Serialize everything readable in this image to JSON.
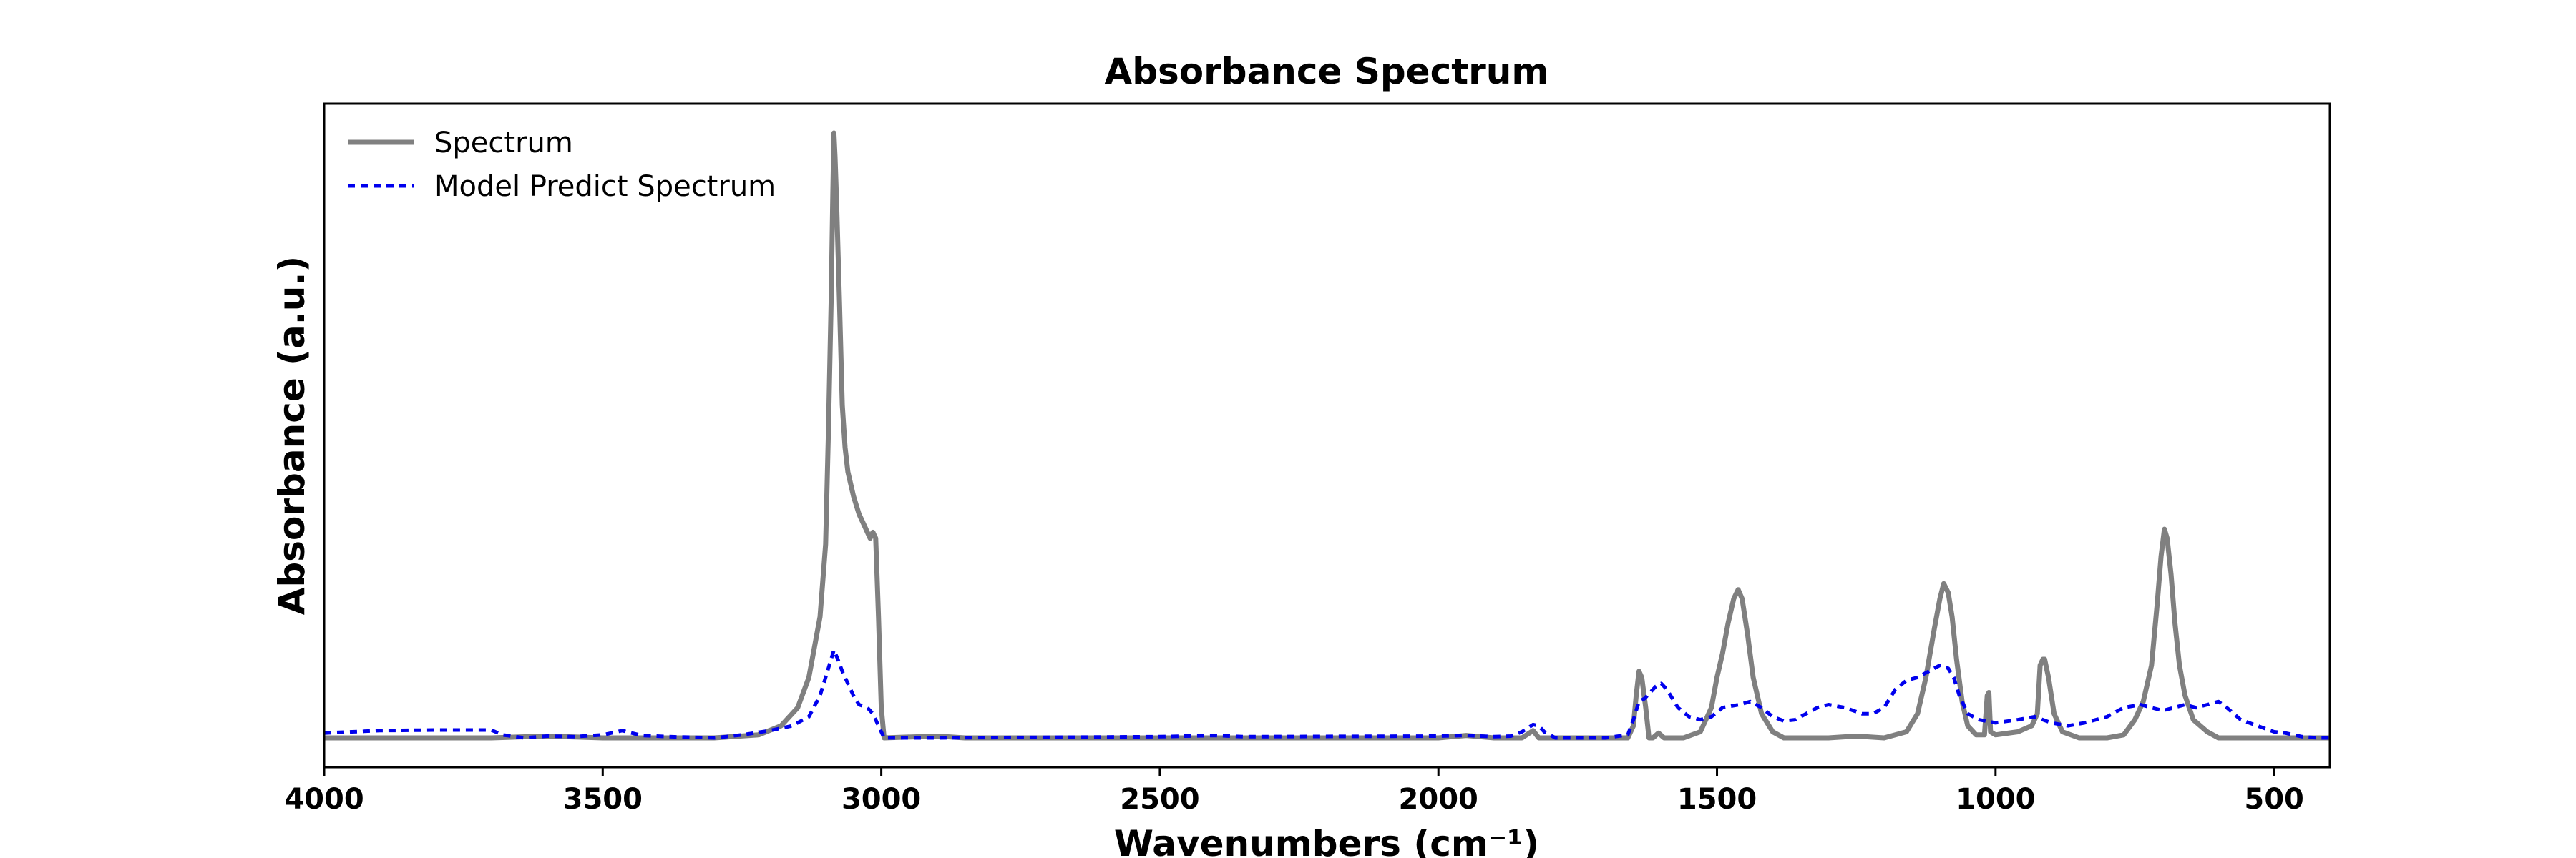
{
  "chart_data": {
    "type": "line",
    "title": "Absorbance Spectrum",
    "xlabel": "Wavenumbers (cm⁻¹)",
    "ylabel": "Absorbance (a.u.)",
    "xlim": [
      4000,
      400
    ],
    "x_reversed": true,
    "ylim": [
      -0.05,
      1.05
    ],
    "y_ticks_shown": false,
    "grid": false,
    "legend_position": "top-left",
    "x_ticks": [
      4000,
      3500,
      3000,
      2500,
      2000,
      1500,
      1000,
      500
    ],
    "x_tick_labels": [
      "4000",
      "3500",
      "3000",
      "2500",
      "2000",
      "1500",
      "1000",
      "500"
    ],
    "series": [
      {
        "name": "Spectrum",
        "color": "#808080",
        "style": "solid",
        "points": [
          [
            4000,
            0.0
          ],
          [
            3700,
            0.0
          ],
          [
            3600,
            0.003
          ],
          [
            3500,
            0.0
          ],
          [
            3300,
            0.0
          ],
          [
            3220,
            0.005
          ],
          [
            3180,
            0.02
          ],
          [
            3150,
            0.05
          ],
          [
            3130,
            0.1
          ],
          [
            3110,
            0.2
          ],
          [
            3100,
            0.32
          ],
          [
            3095,
            0.5
          ],
          [
            3090,
            0.72
          ],
          [
            3087,
            0.9
          ],
          [
            3085,
            1.0
          ],
          [
            3083,
            0.96
          ],
          [
            3080,
            0.88
          ],
          [
            3075,
            0.72
          ],
          [
            3070,
            0.55
          ],
          [
            3065,
            0.48
          ],
          [
            3060,
            0.44
          ],
          [
            3055,
            0.42
          ],
          [
            3050,
            0.4
          ],
          [
            3040,
            0.37
          ],
          [
            3030,
            0.35
          ],
          [
            3020,
            0.33
          ],
          [
            3015,
            0.34
          ],
          [
            3010,
            0.33
          ],
          [
            3005,
            0.2
          ],
          [
            3000,
            0.05
          ],
          [
            2995,
            0.0
          ],
          [
            2900,
            0.003
          ],
          [
            2850,
            0.0
          ],
          [
            2000,
            0.0
          ],
          [
            1950,
            0.004
          ],
          [
            1900,
            0.0
          ],
          [
            1850,
            0.0
          ],
          [
            1830,
            0.012
          ],
          [
            1820,
            0.0
          ],
          [
            1700,
            0.0
          ],
          [
            1660,
            0.0
          ],
          [
            1650,
            0.02
          ],
          [
            1645,
            0.07
          ],
          [
            1640,
            0.11
          ],
          [
            1635,
            0.1
          ],
          [
            1628,
            0.05
          ],
          [
            1622,
            0.0
          ],
          [
            1615,
            0.0
          ],
          [
            1605,
            0.008
          ],
          [
            1595,
            0.0
          ],
          [
            1560,
            0.0
          ],
          [
            1530,
            0.01
          ],
          [
            1510,
            0.05
          ],
          [
            1500,
            0.1
          ],
          [
            1490,
            0.14
          ],
          [
            1480,
            0.19
          ],
          [
            1470,
            0.23
          ],
          [
            1462,
            0.245
          ],
          [
            1455,
            0.23
          ],
          [
            1445,
            0.17
          ],
          [
            1435,
            0.1
          ],
          [
            1420,
            0.04
          ],
          [
            1400,
            0.01
          ],
          [
            1380,
            0.0
          ],
          [
            1300,
            0.0
          ],
          [
            1250,
            0.003
          ],
          [
            1200,
            0.0
          ],
          [
            1160,
            0.01
          ],
          [
            1140,
            0.04
          ],
          [
            1125,
            0.1
          ],
          [
            1110,
            0.18
          ],
          [
            1100,
            0.23
          ],
          [
            1093,
            0.255
          ],
          [
            1085,
            0.24
          ],
          [
            1078,
            0.2
          ],
          [
            1070,
            0.13
          ],
          [
            1060,
            0.06
          ],
          [
            1050,
            0.02
          ],
          [
            1035,
            0.005
          ],
          [
            1020,
            0.005
          ],
          [
            1015,
            0.07
          ],
          [
            1012,
            0.075
          ],
          [
            1009,
            0.01
          ],
          [
            1000,
            0.005
          ],
          [
            960,
            0.01
          ],
          [
            935,
            0.02
          ],
          [
            925,
            0.04
          ],
          [
            920,
            0.12
          ],
          [
            915,
            0.13
          ],
          [
            912,
            0.13
          ],
          [
            905,
            0.1
          ],
          [
            895,
            0.04
          ],
          [
            880,
            0.01
          ],
          [
            850,
            0.0
          ],
          [
            800,
            0.0
          ],
          [
            770,
            0.005
          ],
          [
            750,
            0.03
          ],
          [
            735,
            0.06
          ],
          [
            720,
            0.12
          ],
          [
            710,
            0.22
          ],
          [
            703,
            0.3
          ],
          [
            697,
            0.345
          ],
          [
            692,
            0.33
          ],
          [
            685,
            0.27
          ],
          [
            678,
            0.19
          ],
          [
            670,
            0.12
          ],
          [
            660,
            0.07
          ],
          [
            645,
            0.03
          ],
          [
            620,
            0.01
          ],
          [
            600,
            0.0
          ],
          [
            400,
            0.0
          ]
        ]
      },
      {
        "name": "Model Predict Spectrum",
        "color": "#0000ee",
        "style": "dotted",
        "points": [
          [
            4000,
            0.008
          ],
          [
            3900,
            0.012
          ],
          [
            3800,
            0.013
          ],
          [
            3700,
            0.013
          ],
          [
            3680,
            0.005
          ],
          [
            3640,
            0.0
          ],
          [
            3600,
            0.003
          ],
          [
            3550,
            0.002
          ],
          [
            3500,
            0.005
          ],
          [
            3465,
            0.012
          ],
          [
            3430,
            0.004
          ],
          [
            3380,
            0.002
          ],
          [
            3300,
            0.0
          ],
          [
            3250,
            0.005
          ],
          [
            3200,
            0.012
          ],
          [
            3160,
            0.02
          ],
          [
            3130,
            0.035
          ],
          [
            3110,
            0.07
          ],
          [
            3100,
            0.1
          ],
          [
            3090,
            0.13
          ],
          [
            3085,
            0.145
          ],
          [
            3078,
            0.13
          ],
          [
            3070,
            0.11
          ],
          [
            3060,
            0.09
          ],
          [
            3050,
            0.07
          ],
          [
            3040,
            0.055
          ],
          [
            3025,
            0.05
          ],
          [
            3015,
            0.04
          ],
          [
            3005,
            0.02
          ],
          [
            2995,
            0.0
          ],
          [
            2900,
            0.0
          ],
          [
            2500,
            0.002
          ],
          [
            2400,
            0.004
          ],
          [
            2350,
            0.002
          ],
          [
            2000,
            0.003
          ],
          [
            1950,
            0.004
          ],
          [
            1900,
            0.002
          ],
          [
            1870,
            0.003
          ],
          [
            1850,
            0.01
          ],
          [
            1830,
            0.022
          ],
          [
            1820,
            0.02
          ],
          [
            1810,
            0.01
          ],
          [
            1790,
            0.0
          ],
          [
            1700,
            0.0
          ],
          [
            1660,
            0.005
          ],
          [
            1650,
            0.03
          ],
          [
            1640,
            0.06
          ],
          [
            1630,
            0.065
          ],
          [
            1620,
            0.075
          ],
          [
            1610,
            0.085
          ],
          [
            1600,
            0.09
          ],
          [
            1590,
            0.08
          ],
          [
            1570,
            0.05
          ],
          [
            1550,
            0.035
          ],
          [
            1530,
            0.03
          ],
          [
            1510,
            0.035
          ],
          [
            1490,
            0.05
          ],
          [
            1460,
            0.055
          ],
          [
            1440,
            0.06
          ],
          [
            1420,
            0.05
          ],
          [
            1400,
            0.035
          ],
          [
            1380,
            0.028
          ],
          [
            1360,
            0.03
          ],
          [
            1340,
            0.04
          ],
          [
            1320,
            0.05
          ],
          [
            1300,
            0.055
          ],
          [
            1270,
            0.05
          ],
          [
            1240,
            0.04
          ],
          [
            1220,
            0.04
          ],
          [
            1200,
            0.05
          ],
          [
            1180,
            0.08
          ],
          [
            1160,
            0.095
          ],
          [
            1140,
            0.1
          ],
          [
            1120,
            0.11
          ],
          [
            1100,
            0.12
          ],
          [
            1085,
            0.115
          ],
          [
            1075,
            0.1
          ],
          [
            1065,
            0.07
          ],
          [
            1050,
            0.04
          ],
          [
            1030,
            0.03
          ],
          [
            1000,
            0.025
          ],
          [
            960,
            0.03
          ],
          [
            930,
            0.035
          ],
          [
            900,
            0.025
          ],
          [
            870,
            0.02
          ],
          [
            840,
            0.025
          ],
          [
            800,
            0.035
          ],
          [
            770,
            0.05
          ],
          [
            740,
            0.055
          ],
          [
            720,
            0.05
          ],
          [
            700,
            0.045
          ],
          [
            680,
            0.05
          ],
          [
            660,
            0.055
          ],
          [
            640,
            0.05
          ],
          [
            620,
            0.055
          ],
          [
            600,
            0.06
          ],
          [
            585,
            0.05
          ],
          [
            560,
            0.03
          ],
          [
            530,
            0.02
          ],
          [
            500,
            0.01
          ],
          [
            480,
            0.008
          ],
          [
            450,
            0.002
          ],
          [
            420,
            0.0
          ],
          [
            400,
            0.0
          ]
        ]
      }
    ]
  }
}
